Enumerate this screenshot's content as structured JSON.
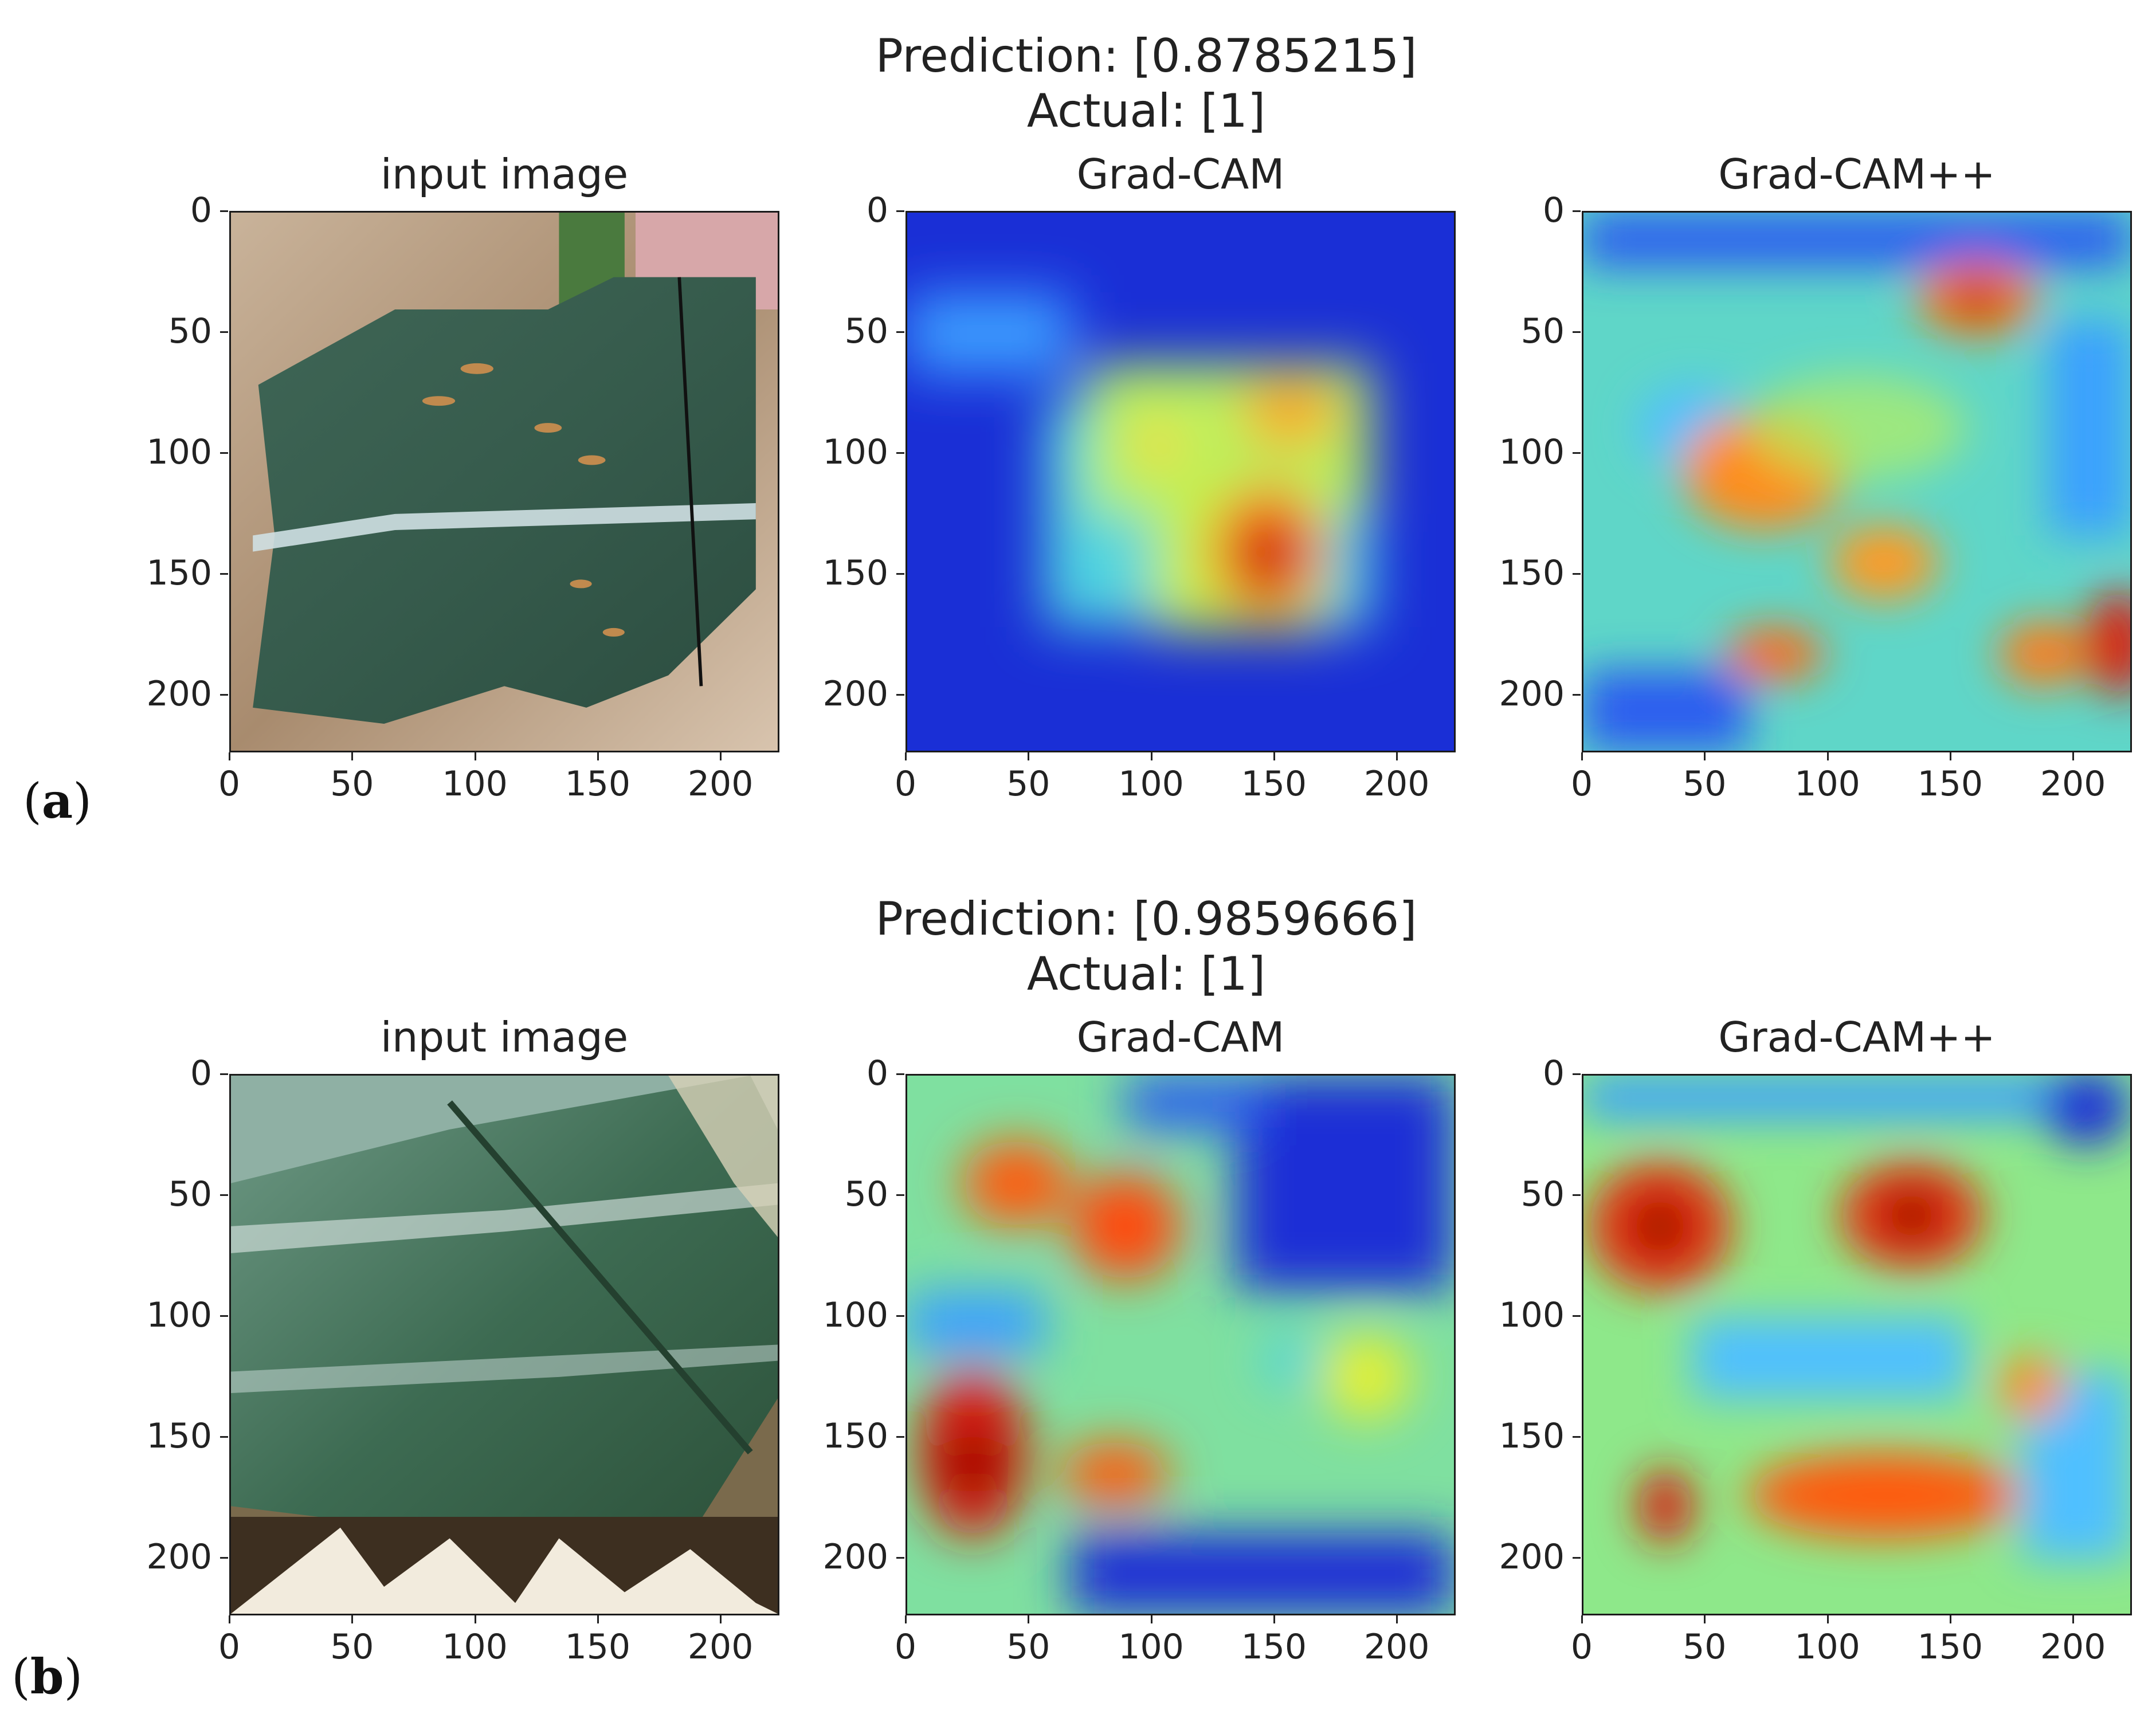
{
  "rows": [
    {
      "label_open": "(",
      "label_letter": "a",
      "label_close": ")",
      "title_line1": "Prediction: [0.8785215]",
      "title_line2": "Actual: [1]",
      "panels": [
        {
          "title": "input image",
          "kind": "leaf"
        },
        {
          "title": "Grad-CAM",
          "kind": "gradcam"
        },
        {
          "title": "Grad-CAM++",
          "kind": "gradcampp"
        }
      ]
    },
    {
      "label_open": "(",
      "label_letter": "b",
      "label_close": ")",
      "title_line1": "Prediction: [0.9859666]",
      "title_line2": "Actual: [1]",
      "panels": [
        {
          "title": "input image",
          "kind": "leaf"
        },
        {
          "title": "Grad-CAM",
          "kind": "gradcam"
        },
        {
          "title": "Grad-CAM++",
          "kind": "gradcampp"
        }
      ]
    }
  ],
  "axes": {
    "y_ticks": [
      "0",
      "50",
      "100",
      "150",
      "200"
    ],
    "x_ticks": [
      "0",
      "50",
      "100",
      "150",
      "200"
    ]
  },
  "colors": {
    "jet_low": "#00007f",
    "jet_mid": "#7fff7f",
    "jet_high": "#7f0000"
  }
}
